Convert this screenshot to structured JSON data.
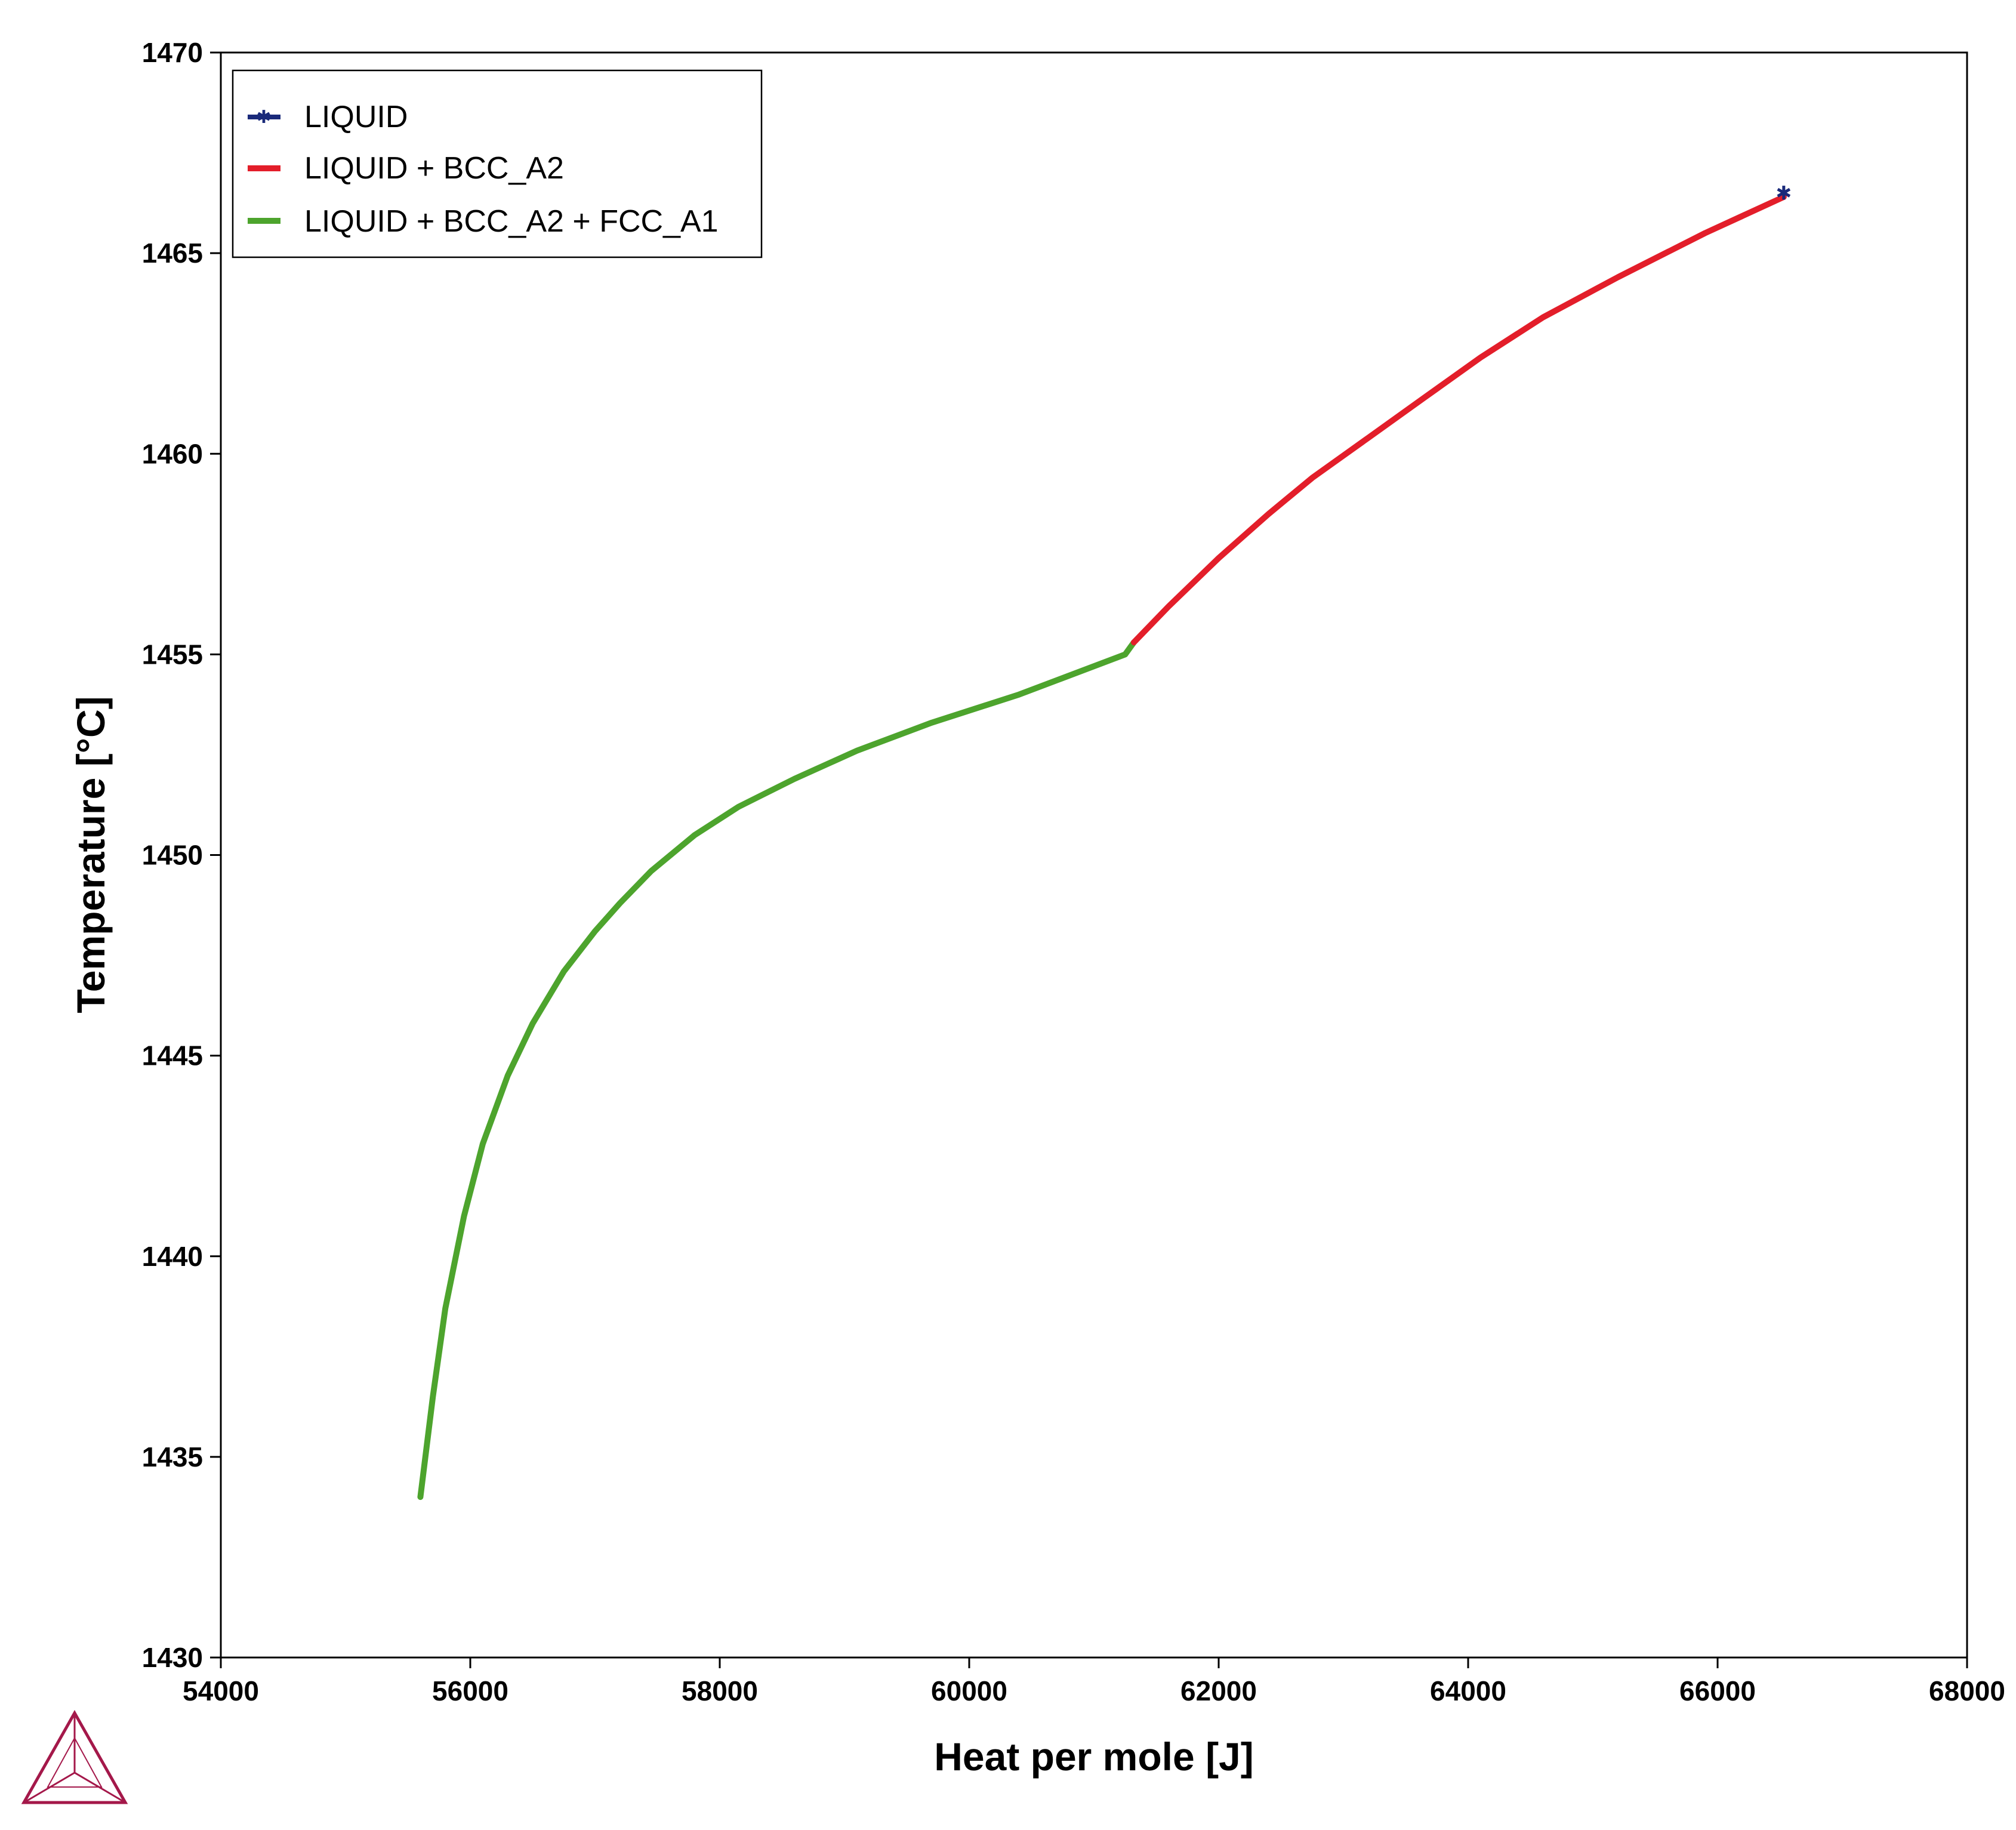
{
  "chart_data": {
    "type": "line",
    "xlabel": "Heat per mole [J]",
    "ylabel": "Temperature [°C]",
    "xlim": [
      54000,
      68000
    ],
    "ylim": [
      1430,
      1470
    ],
    "xticks": [
      54000,
      56000,
      58000,
      60000,
      62000,
      64000,
      66000,
      68000
    ],
    "yticks": [
      1430,
      1435,
      1440,
      1445,
      1450,
      1455,
      1460,
      1465,
      1470
    ],
    "grid": false,
    "legend_position": "top-left",
    "series": [
      {
        "name": "LIQUID",
        "color": "#1a2a7a",
        "marker": "star",
        "x": [
          66530
        ],
        "y": [
          1466.5
        ]
      },
      {
        "name": "LIQUID + BCC_A2",
        "color": "#e31e2a",
        "x": [
          61320,
          61600,
          62000,
          62400,
          62750,
          63200,
          63650,
          64100,
          64600,
          65200,
          65900,
          66530
        ],
        "y": [
          1455.3,
          1456.2,
          1457.4,
          1458.5,
          1459.4,
          1460.4,
          1461.4,
          1462.4,
          1463.4,
          1464.4,
          1465.5,
          1466.4
        ]
      },
      {
        "name": "LIQUID + BCC_A2 + FCC_A1",
        "color": "#4da42d",
        "x": [
          55600,
          55700,
          55800,
          55950,
          56100,
          56300,
          56500,
          56750,
          57000,
          57200,
          57450,
          57800,
          58150,
          58600,
          59100,
          59700,
          60400,
          61250,
          61320
        ],
        "y": [
          1434.0,
          1436.5,
          1438.7,
          1441.0,
          1442.8,
          1444.5,
          1445.8,
          1447.1,
          1448.1,
          1448.8,
          1449.6,
          1450.5,
          1451.2,
          1451.9,
          1452.6,
          1453.3,
          1454.0,
          1455.0,
          1455.3
        ]
      }
    ]
  }
}
